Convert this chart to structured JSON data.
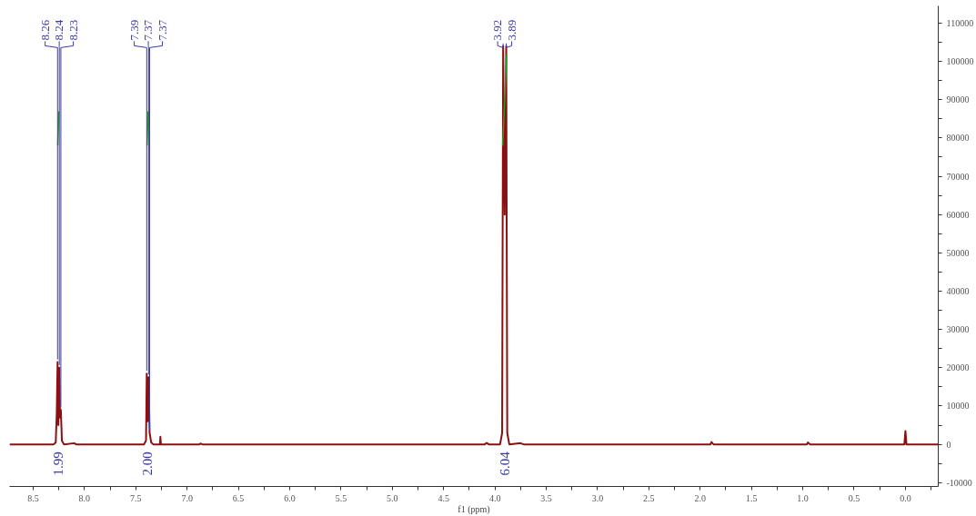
{
  "chart_data": {
    "type": "line",
    "xlabel": "f1 (ppm)",
    "series": [
      {
        "color": "#8b1010",
        "x": [
          8.73,
          8.3,
          8.28,
          8.27,
          8.262,
          8.255,
          8.245,
          8.238,
          8.23,
          8.22,
          8.2,
          8.1,
          8.08,
          7.42,
          7.4,
          7.393,
          7.385,
          7.375,
          7.365,
          7.35,
          7.33,
          7.265,
          7.26,
          7.255,
          6.88,
          6.87,
          6.85,
          4.1,
          4.08,
          4.06,
          3.95,
          3.93,
          3.92,
          3.905,
          3.89,
          3.88,
          3.86,
          3.75,
          3.72,
          1.9,
          1.89,
          1.87,
          0.96,
          0.95,
          0.93,
          0.01,
          0.0,
          -0.01,
          -0.32
        ],
        "values": [
          0,
          0,
          500,
          8000,
          21500,
          5000,
          20000,
          7000,
          9000,
          1000,
          0,
          300,
          0,
          0,
          1000,
          18500,
          6000,
          17500,
          3000,
          500,
          0,
          0,
          2000,
          0,
          0,
          200,
          0,
          0,
          400,
          0,
          0,
          3000,
          104000,
          60000,
          104000,
          3000,
          0,
          300,
          0,
          0,
          600,
          0,
          0,
          500,
          0,
          0,
          3500,
          0,
          0
        ]
      },
      {
        "type": "line",
        "color": "#2e9a2e",
        "x": [
          8.26,
          8.25
        ],
        "values": [
          78000,
          87000
        ]
      },
      {
        "type": "line",
        "color": "#2e9a2e",
        "x": [
          7.39,
          7.38
        ],
        "values": [
          78000,
          87000
        ]
      },
      {
        "type": "line",
        "color": "#2e9a2e",
        "x": [
          3.925,
          3.885
        ],
        "values": [
          78000,
          102000
        ]
      }
    ],
    "xlim": [
      8.73,
      -0.32
    ],
    "xticks": [
      8.5,
      {
        "value": 8.25,
        "label": null
      },
      {
        "value": 8,
        "label": "8.0"
      },
      {
        "value": 7.75,
        "label": null
      },
      7.5,
      {
        "value": 7.25,
        "label": null
      },
      {
        "value": 7,
        "label": "7.0"
      },
      {
        "value": 6.75,
        "label": null
      },
      6.5,
      {
        "value": 6.25,
        "label": null
      },
      {
        "value": 6,
        "label": "6.0"
      },
      {
        "value": 5.75,
        "label": null
      },
      5.5,
      {
        "value": 5.25,
        "label": null
      },
      {
        "value": 5,
        "label": "5.0"
      },
      {
        "value": 4.75,
        "label": null
      },
      4.5,
      {
        "value": 4.25,
        "label": null
      },
      {
        "value": 4,
        "label": "4.0"
      },
      {
        "value": 3.75,
        "label": null
      },
      3.5,
      {
        "value": 3.25,
        "label": null
      },
      {
        "value": 3,
        "label": "3.0"
      },
      {
        "value": 2.75,
        "label": null
      },
      2.5,
      {
        "value": 2.25,
        "label": null
      },
      {
        "value": 2,
        "label": "2.0"
      },
      {
        "value": 1.75,
        "label": null
      },
      1.5,
      {
        "value": 1.25,
        "label": null
      },
      {
        "value": 1,
        "label": "1.0"
      },
      {
        "value": 0.75,
        "label": null
      },
      0.5,
      {
        "value": 0.25,
        "label": null
      },
      {
        "value": 0,
        "label": "0.0"
      },
      {
        "value": -0.25,
        "label": null
      }
    ],
    "ylim": [
      -11000,
      114500
    ],
    "yticks": [
      -10000,
      {
        "value": -5000,
        "label": null
      },
      0,
      {
        "value": 5000,
        "label": null
      },
      10000,
      {
        "value": 15000,
        "label": null
      },
      20000,
      {
        "value": 25000,
        "label": null
      },
      30000,
      {
        "value": 35000,
        "label": null
      },
      40000,
      {
        "value": 45000,
        "label": null
      },
      50000,
      {
        "value": 55000,
        "label": null
      },
      60000,
      {
        "value": 65000,
        "label": null
      },
      70000,
      {
        "value": 75000,
        "label": null
      },
      80000,
      {
        "value": 85000,
        "label": null
      },
      90000,
      {
        "value": 95000,
        "label": null
      },
      100000,
      {
        "value": 105000,
        "label": null
      },
      110000
    ],
    "annotations": [
      {
        "text": "8.26",
        "x": 8.262,
        "y": 21500
      },
      {
        "text": "8.24",
        "x": 8.245,
        "y": 20000
      },
      {
        "text": "8.23",
        "x": 8.23,
        "y": 9000
      },
      {
        "text": "7.39",
        "x": 7.393,
        "y": 18500
      },
      {
        "text": "7.37",
        "x": 7.375,
        "y": 17500
      },
      {
        "text": "7.37",
        "x": 7.365,
        "y": 3000
      },
      {
        "text": "3.92",
        "x": 3.92,
        "y": 104000
      },
      {
        "text": "3.89",
        "x": 3.89,
        "y": 104000
      },
      "1.99",
      "2.00",
      "6.04"
    ],
    "grid": false,
    "line_style": "solid",
    "marker": "none"
  }
}
